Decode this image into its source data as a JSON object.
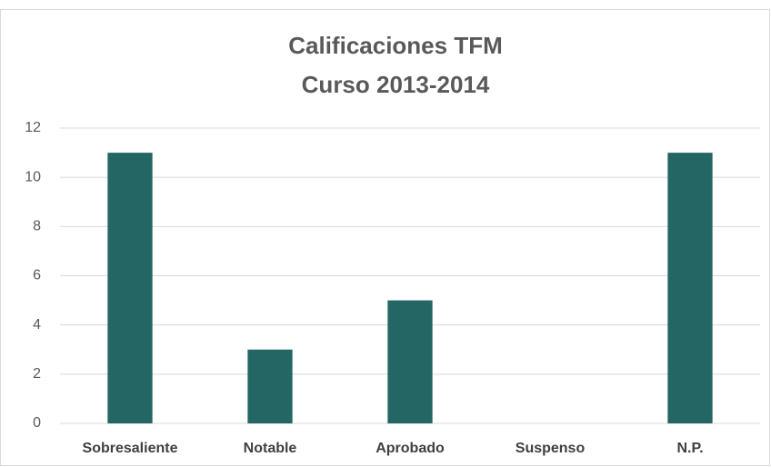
{
  "chart_data": {
    "type": "bar",
    "title": [
      "Calificaciones TFM",
      "Curso 2013-2014"
    ],
    "categories": [
      "Sobresaliente",
      "Notable",
      "Aprobado",
      "Suspenso",
      "N.P."
    ],
    "values": [
      11,
      3,
      5,
      0,
      11
    ],
    "color": "#236663",
    "ylim": [
      0,
      12
    ],
    "yticks": [
      0,
      2,
      4,
      6,
      8,
      10,
      12
    ],
    "grid": true
  }
}
